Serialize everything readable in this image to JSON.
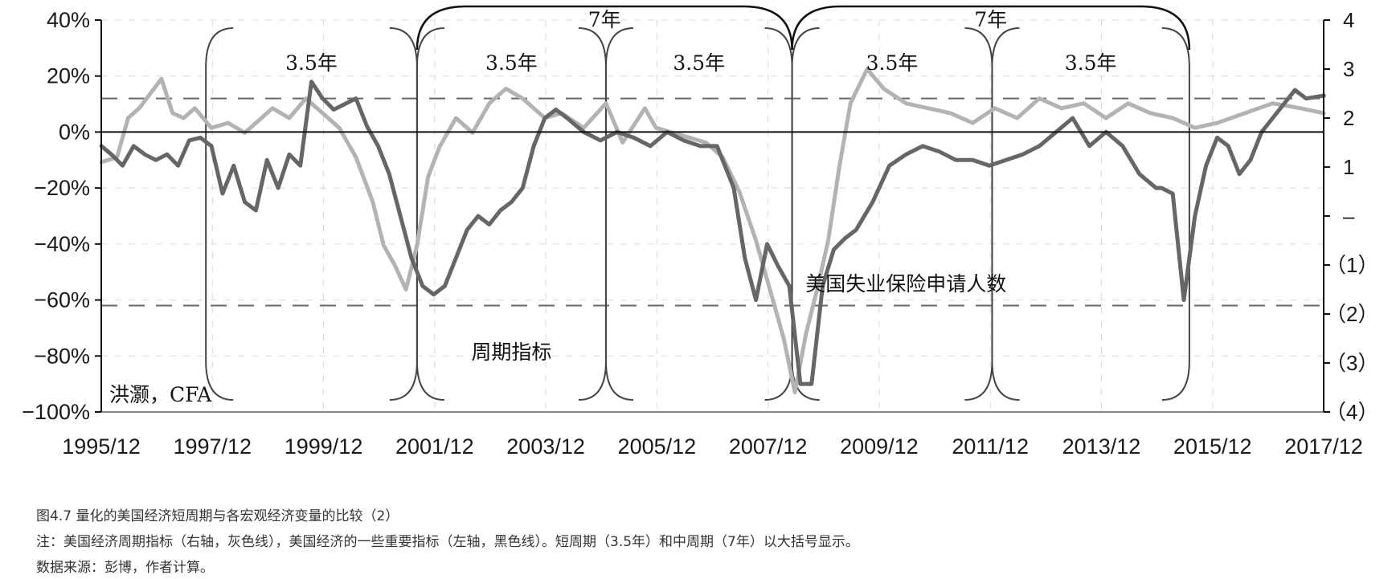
{
  "chart_data": {
    "type": "line",
    "axes": {
      "left": {
        "min": -100,
        "max": 40,
        "ticks": [
          "40%",
          "20%",
          "0%",
          "−20%",
          "−40%",
          "−60%",
          "−80%",
          "−100%"
        ],
        "tick_values": [
          40,
          20,
          0,
          -20,
          -40,
          -60,
          -80,
          -100
        ]
      },
      "right": {
        "min": -4,
        "max": 4,
        "ticks": [
          "4",
          "3",
          "2",
          "1",
          "–",
          "（1）",
          "（2）",
          "（3）",
          "（4）"
        ],
        "tick_values": [
          4,
          3,
          2,
          1,
          0,
          -1,
          -2,
          -3,
          -4
        ]
      },
      "x": {
        "ticks": [
          "1995/12",
          "1997/12",
          "1999/12",
          "2001/12",
          "2003/12",
          "2005/12",
          "2007/12",
          "2009/12",
          "2011/12",
          "2013/12",
          "2015/12",
          "2017/12"
        ],
        "tick_values": [
          1995.917,
          1997.917,
          1999.917,
          2001.917,
          2003.917,
          2005.917,
          2007.917,
          2009.917,
          2011.917,
          2013.917,
          2015.917,
          2017.917
        ]
      }
    },
    "grid": true,
    "reference_lines": [
      {
        "axis": "left",
        "value": 12
      },
      {
        "axis": "left",
        "value": -62
      }
    ],
    "series": [
      {
        "name": "周期指标",
        "axis": "right",
        "color": "#b3b3b3",
        "x": [
          1995.92,
          1996.2,
          1996.4,
          1996.6,
          1996.8,
          1997.0,
          1997.2,
          1997.4,
          1997.6,
          1997.9,
          1998.2,
          1998.5,
          1998.8,
          1999.0,
          1999.3,
          1999.6,
          1999.9,
          2000.2,
          2000.5,
          2000.8,
          2001.0,
          2001.2,
          2001.4,
          2001.6,
          2001.8,
          2002.0,
          2002.3,
          2002.6,
          2002.9,
          2003.2,
          2003.5,
          2003.9,
          2004.2,
          2004.6,
          2005.0,
          2005.3,
          2005.7,
          2005.9,
          2006.2,
          2006.5,
          2006.8,
          2007.1,
          2007.4,
          2007.7,
          2007.9,
          2008.2,
          2008.4,
          2008.6,
          2008.8,
          2009.0,
          2009.2,
          2009.4,
          2009.7,
          2010.0,
          2010.4,
          2010.8,
          2011.2,
          2011.6,
          2012.0,
          2012.4,
          2012.8,
          2013.2,
          2013.6,
          2014.0,
          2014.4,
          2014.8,
          2015.2,
          2015.6,
          2016.0,
          2016.5,
          2017.0,
          2017.5,
          2017.92
        ],
        "values": [
          1.1,
          1.2,
          2.0,
          2.2,
          2.5,
          2.8,
          2.1,
          2.0,
          2.2,
          1.8,
          1.9,
          1.7,
          2.0,
          2.2,
          2.0,
          2.4,
          2.1,
          1.8,
          1.2,
          0.3,
          -0.6,
          -1.0,
          -1.5,
          -0.6,
          0.8,
          1.4,
          2.0,
          1.7,
          2.3,
          2.6,
          2.4,
          2.0,
          2.1,
          1.8,
          2.3,
          1.5,
          2.2,
          1.8,
          1.7,
          1.6,
          1.5,
          1.2,
          0.5,
          -0.5,
          -1.3,
          -2.5,
          -3.6,
          -2.4,
          -1.5,
          -0.5,
          1.0,
          2.3,
          3.0,
          2.6,
          2.3,
          2.2,
          2.1,
          1.9,
          2.2,
          2.0,
          2.4,
          2.2,
          2.3,
          2.0,
          2.3,
          2.1,
          2.0,
          1.8,
          1.9,
          2.1,
          2.3,
          2.2,
          2.1
        ]
      },
      {
        "name": "美国失业保险申请人数",
        "axis": "left",
        "color": "#666666",
        "x": [
          1995.92,
          1996.1,
          1996.3,
          1996.5,
          1996.7,
          1996.9,
          1997.1,
          1997.3,
          1997.5,
          1997.7,
          1997.9,
          1998.1,
          1998.3,
          1998.5,
          1998.7,
          1998.9,
          1999.1,
          1999.3,
          1999.5,
          1999.7,
          1999.9,
          2000.1,
          2000.3,
          2000.5,
          2000.7,
          2000.9,
          2001.1,
          2001.3,
          2001.5,
          2001.7,
          2001.9,
          2002.1,
          2002.3,
          2002.5,
          2002.7,
          2002.9,
          2003.1,
          2003.3,
          2003.5,
          2003.7,
          2003.9,
          2004.1,
          2004.3,
          2004.6,
          2004.9,
          2005.2,
          2005.5,
          2005.8,
          2006.1,
          2006.4,
          2006.7,
          2007.0,
          2007.3,
          2007.5,
          2007.7,
          2007.9,
          2008.1,
          2008.3,
          2008.5,
          2008.7,
          2008.9,
          2009.1,
          2009.3,
          2009.5,
          2009.8,
          2010.1,
          2010.4,
          2010.7,
          2011.0,
          2011.3,
          2011.6,
          2011.9,
          2012.2,
          2012.5,
          2012.8,
          2013.1,
          2013.4,
          2013.7,
          2014.0,
          2014.3,
          2014.6,
          2014.9,
          2015.0,
          2015.2,
          2015.4,
          2015.6,
          2015.8,
          2016.0,
          2016.2,
          2016.4,
          2016.6,
          2016.8,
          2017.0,
          2017.2,
          2017.4,
          2017.6,
          2017.92
        ],
        "values": [
          -5,
          -8,
          -12,
          -5,
          -8,
          -10,
          -8,
          -12,
          -3,
          -2,
          -5,
          -22,
          -12,
          -25,
          -28,
          -10,
          -20,
          -8,
          -12,
          18,
          12,
          8,
          10,
          12,
          2,
          -5,
          -15,
          -30,
          -45,
          -55,
          -58,
          -55,
          -45,
          -35,
          -30,
          -33,
          -28,
          -25,
          -20,
          -5,
          5,
          8,
          5,
          0,
          -3,
          0,
          -2,
          -5,
          0,
          -3,
          -5,
          -5,
          -20,
          -45,
          -60,
          -40,
          -48,
          -55,
          -90,
          -90,
          -55,
          -42,
          -38,
          -35,
          -25,
          -12,
          -8,
          -5,
          -7,
          -10,
          -10,
          -12,
          -10,
          -8,
          -5,
          0,
          5,
          -5,
          0,
          -5,
          -15,
          -20,
          -20,
          -22,
          -60,
          -30,
          -12,
          -2,
          -5,
          -15,
          -10,
          0,
          5,
          10,
          15,
          12,
          13
        ]
      }
    ],
    "annotations": {
      "short_cycle_label": "3.5年",
      "mid_cycle_label": "7年",
      "indicator_label": "周期指标",
      "claims_label": "美国失业保险申请人数",
      "author_label": "洪灏，CFA"
    },
    "cycles": {
      "short_boundaries": [
        1997.8,
        2001.6,
        2005.0,
        2008.35,
        2011.95,
        2015.5
      ],
      "mid_boundaries": [
        2001.6,
        2008.35,
        2015.5
      ],
      "claims_label_year": 2010.4,
      "indicator_label_year": 2003.3
    }
  },
  "caption": {
    "title": "图4.7 量化的美国经济短周期与各宏观经济变量的比较（2）",
    "note": "注：美国经济周期指标（右轴，灰色线），美国经济的一些重要指标（左轴，黑色线）。短周期（3.5年）和中周期（7年）以大括号显示。",
    "source": "数据来源：彭博，作者计算。"
  }
}
